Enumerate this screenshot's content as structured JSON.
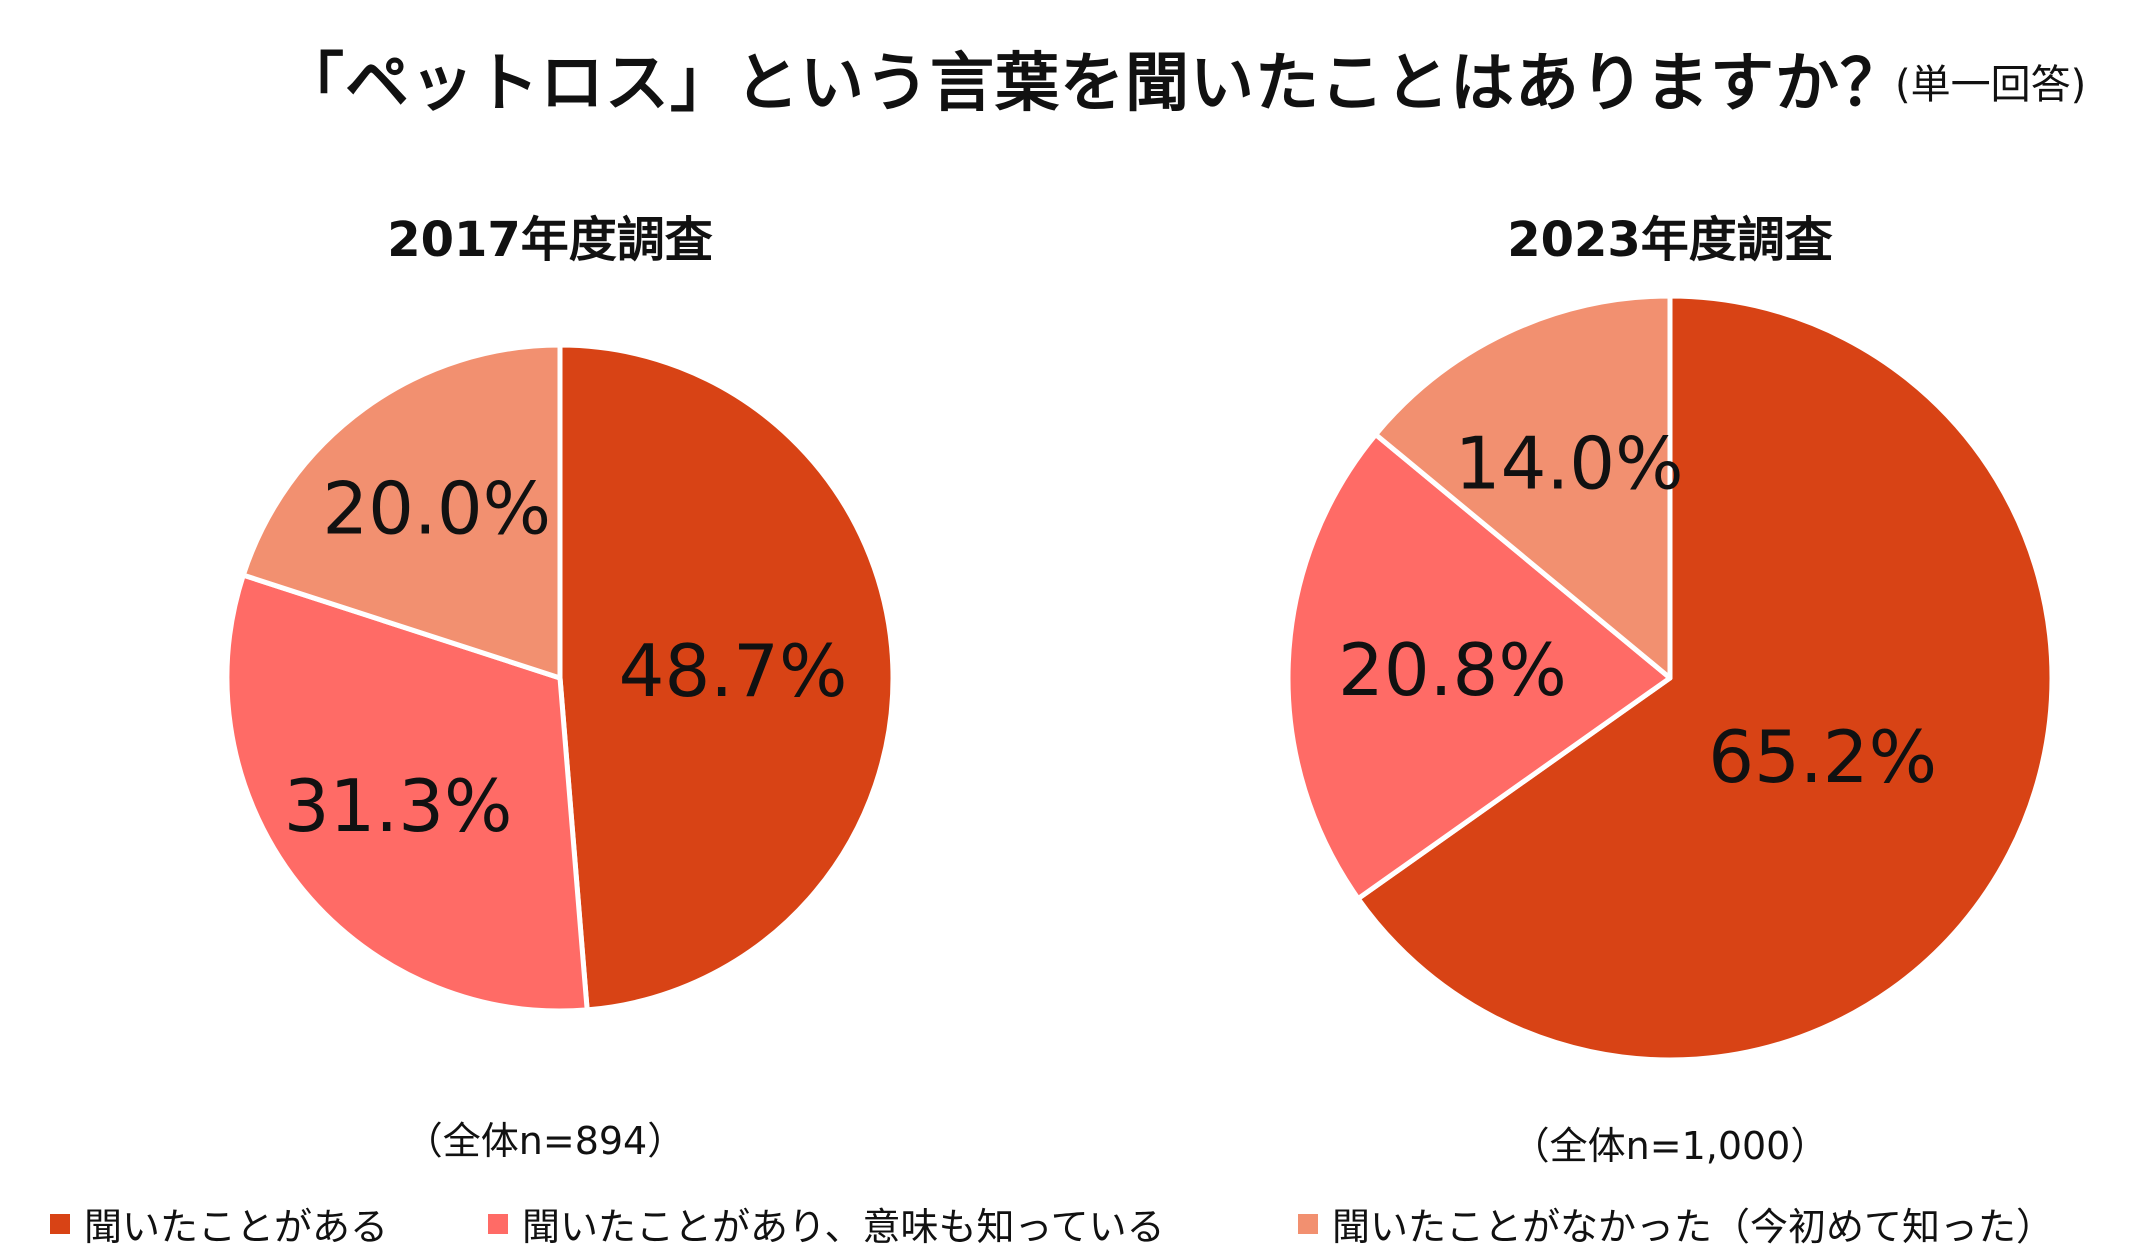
{
  "title": "「ペットロス」という言葉を聞いたことはありますか？",
  "subtitle": "(単一回答)",
  "colors": {
    "heard": "#D84315",
    "heard_know_meaning": "#FF6B66",
    "never_heard": "#F29070",
    "divider": "#ffffff"
  },
  "legend": [
    {
      "label": "聞いたことがある",
      "color_key": "heard"
    },
    {
      "label": "聞いたことがあり、意味も知っている",
      "color_key": "heard_know_meaning"
    },
    {
      "label": "聞いたことがなかった（今初めて知った）",
      "color_key": "never_heard"
    }
  ],
  "chart_data": [
    {
      "type": "pie",
      "title": "2017年度調査",
      "note": "（全体n=894）",
      "slices": [
        {
          "category": "聞いたことがある",
          "value": 48.7,
          "label": "48.7%",
          "color_key": "heard"
        },
        {
          "category": "聞いたことがあり、意味も知っている",
          "value": 31.3,
          "label": "31.3%",
          "color_key": "heard_know_meaning"
        },
        {
          "category": "聞いたことがなかった（今初めて知った）",
          "value": 20.0,
          "label": "20.0%",
          "color_key": "never_heard"
        }
      ]
    },
    {
      "type": "pie",
      "title": "2023年度調査",
      "note": "（全体n=1,000）",
      "slices": [
        {
          "category": "聞いたことがある",
          "value": 65.2,
          "label": "65.2%",
          "color_key": "heard"
        },
        {
          "category": "聞いたことがあり、意味も知っている",
          "value": 20.8,
          "label": "20.8%",
          "color_key": "heard_know_meaning"
        },
        {
          "category": "聞いたことがなかった（今初めて知った）",
          "value": 14.0,
          "label": "14.0%",
          "color_key": "never_heard"
        }
      ]
    }
  ]
}
